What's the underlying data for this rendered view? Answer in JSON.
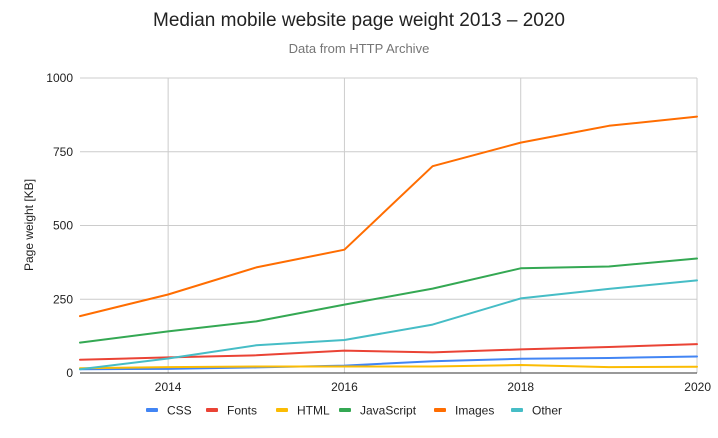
{
  "chart_data": {
    "type": "line",
    "title": "Median mobile website page weight 2013 – 2020",
    "subtitle": "Data from HTTP Archive",
    "xlabel": "",
    "ylabel": "Page weight [KB]",
    "x": [
      2013,
      2014,
      2015,
      2016,
      2017,
      2018,
      2019,
      2020
    ],
    "xlim": [
      2013,
      2020
    ],
    "ylim": [
      0,
      1000
    ],
    "xticks": [
      "2014",
      "2016",
      "2018",
      "2020"
    ],
    "xtick_values": [
      2014,
      2016,
      2018,
      2020
    ],
    "yticks": [
      "0",
      "250",
      "500",
      "750",
      "1000"
    ],
    "ytick_values": [
      0,
      250,
      500,
      750,
      1000
    ],
    "grid": true,
    "legend_position": "bottom",
    "series": [
      {
        "name": "CSS",
        "color": "#4285f4",
        "values": [
          13,
          14,
          19,
          25,
          40,
          48,
          51,
          56
        ]
      },
      {
        "name": "Fonts",
        "color": "#ea4335",
        "values": [
          45,
          53,
          60,
          76,
          70,
          80,
          88,
          98
        ]
      },
      {
        "name": "HTML",
        "color": "#fbbc04",
        "values": [
          16,
          20,
          22,
          22,
          22,
          27,
          20,
          21
        ]
      },
      {
        "name": "JavaScript",
        "color": "#34a853",
        "values": [
          103,
          141,
          175,
          232,
          286,
          355,
          361,
          388
        ]
      },
      {
        "name": "Images",
        "color": "#ff6d01",
        "values": [
          193,
          266,
          358,
          418,
          701,
          781,
          838,
          869
        ]
      },
      {
        "name": "Other",
        "color": "#46bdc6",
        "values": [
          13,
          49,
          94,
          112,
          164,
          253,
          285,
          314
        ]
      }
    ]
  }
}
